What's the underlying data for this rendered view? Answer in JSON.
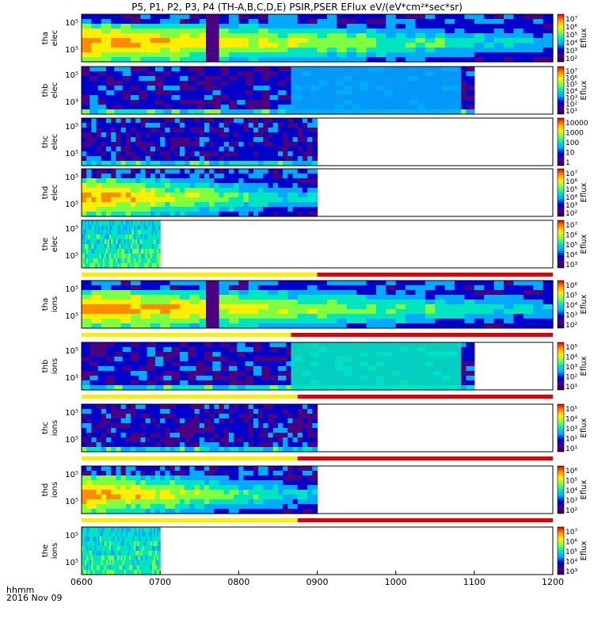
{
  "title": "P5, P1, P2, P3, P4 (TH-A,B,C,D,E) PSIR,PSER EFlux eV/(eV*cm²*sec*sr)",
  "footer": {
    "line1": "hhmm",
    "line2": "2016 Nov 09"
  },
  "chart_data": {
    "type": "heatmap",
    "x_ticks": [
      "0600",
      "0700",
      "0800",
      "0900",
      "1000",
      "1100",
      "1200"
    ],
    "panels": [
      {
        "label1": "tha",
        "label2": "elec",
        "y_ticks": [
          "10⁵",
          "10⁵"
        ],
        "cbar_label": "Eflux",
        "cbar_ticks": [
          "10⁷",
          "10⁶",
          "10⁵",
          "10⁴",
          "10³",
          "10²"
        ],
        "coverage_end": "1200",
        "flag_bar": false
      },
      {
        "label1": "thb",
        "label2": "elec",
        "y_ticks": [
          "10⁵",
          "10³"
        ],
        "cbar_label": "Eflux",
        "cbar_ticks": [
          "10⁷",
          "10⁶",
          "10⁵",
          "10⁴",
          "10³",
          "10²",
          "10¹"
        ],
        "coverage_end": "1100",
        "flag_bar": false
      },
      {
        "label1": "thc",
        "label2": "elec",
        "y_ticks": [
          "10⁵",
          "10⁵"
        ],
        "cbar_label": "",
        "cbar_ticks": [
          "10000",
          "1000",
          "100",
          "10",
          "1"
        ],
        "coverage_end": "0900",
        "flag_bar": false
      },
      {
        "label1": "thd",
        "label2": "elec",
        "y_ticks": [
          "10⁵",
          "10⁵"
        ],
        "cbar_label": "Eflux",
        "cbar_ticks": [
          "10⁷",
          "10⁶",
          "10⁵",
          "10⁴",
          "10³",
          "10²"
        ],
        "coverage_end": "0900",
        "flag_bar": false
      },
      {
        "label1": "the",
        "label2": "elec",
        "y_ticks": [
          "10⁵",
          "10⁵"
        ],
        "cbar_label": "Eflux",
        "cbar_ticks": [
          "10⁷",
          "10⁶",
          "10⁵",
          "10⁴",
          "10³"
        ],
        "coverage_end": "0700",
        "flag_bar": true
      },
      {
        "label1": "tha",
        "label2": "ions",
        "y_ticks": [
          "10⁵",
          "10⁵"
        ],
        "cbar_label": "Eflux",
        "cbar_ticks": [
          "10⁶",
          "10⁵",
          "10⁴",
          "10³",
          "10²"
        ],
        "coverage_end": "1200",
        "flag_bar": true
      },
      {
        "label1": "thb",
        "label2": "ions",
        "y_ticks": [
          "10⁵",
          "10³"
        ],
        "cbar_label": "Eflux",
        "cbar_ticks": [
          "10⁵",
          "10⁴",
          "10³",
          "10²",
          "10¹"
        ],
        "coverage_end": "1100",
        "flag_bar": true
      },
      {
        "label1": "thc",
        "label2": "ions",
        "y_ticks": [
          "10⁵",
          "10⁵"
        ],
        "cbar_label": "Eflux",
        "cbar_ticks": [
          "10⁵",
          "10⁴",
          "10³",
          "10²",
          "10¹"
        ],
        "coverage_end": "0900",
        "flag_bar": true
      },
      {
        "label1": "thd",
        "label2": "ions",
        "y_ticks": [
          "10⁵",
          "10⁵"
        ],
        "cbar_label": "Eflux",
        "cbar_ticks": [
          "10⁶",
          "10⁵",
          "10⁴",
          "10³",
          "10²"
        ],
        "coverage_end": "0900",
        "flag_bar": true
      },
      {
        "label1": "the",
        "label2": "ions",
        "y_ticks": [
          "10⁵",
          "10⁵"
        ],
        "cbar_label": "Eflux",
        "cbar_ticks": [
          "10⁷",
          "10⁶",
          "10⁵",
          "10⁴",
          "10³"
        ],
        "coverage_end": "0700",
        "flag_bar": false
      }
    ]
  },
  "colors": {
    "spectrum": [
      "#2a0040",
      "#4b0082",
      "#0000cd",
      "#00aaff",
      "#00e5c0",
      "#7fff3f",
      "#ffee00",
      "#ff8c00",
      "#e00000"
    ],
    "flag_good": "#ffee00",
    "flag_bad": "#e00000"
  }
}
